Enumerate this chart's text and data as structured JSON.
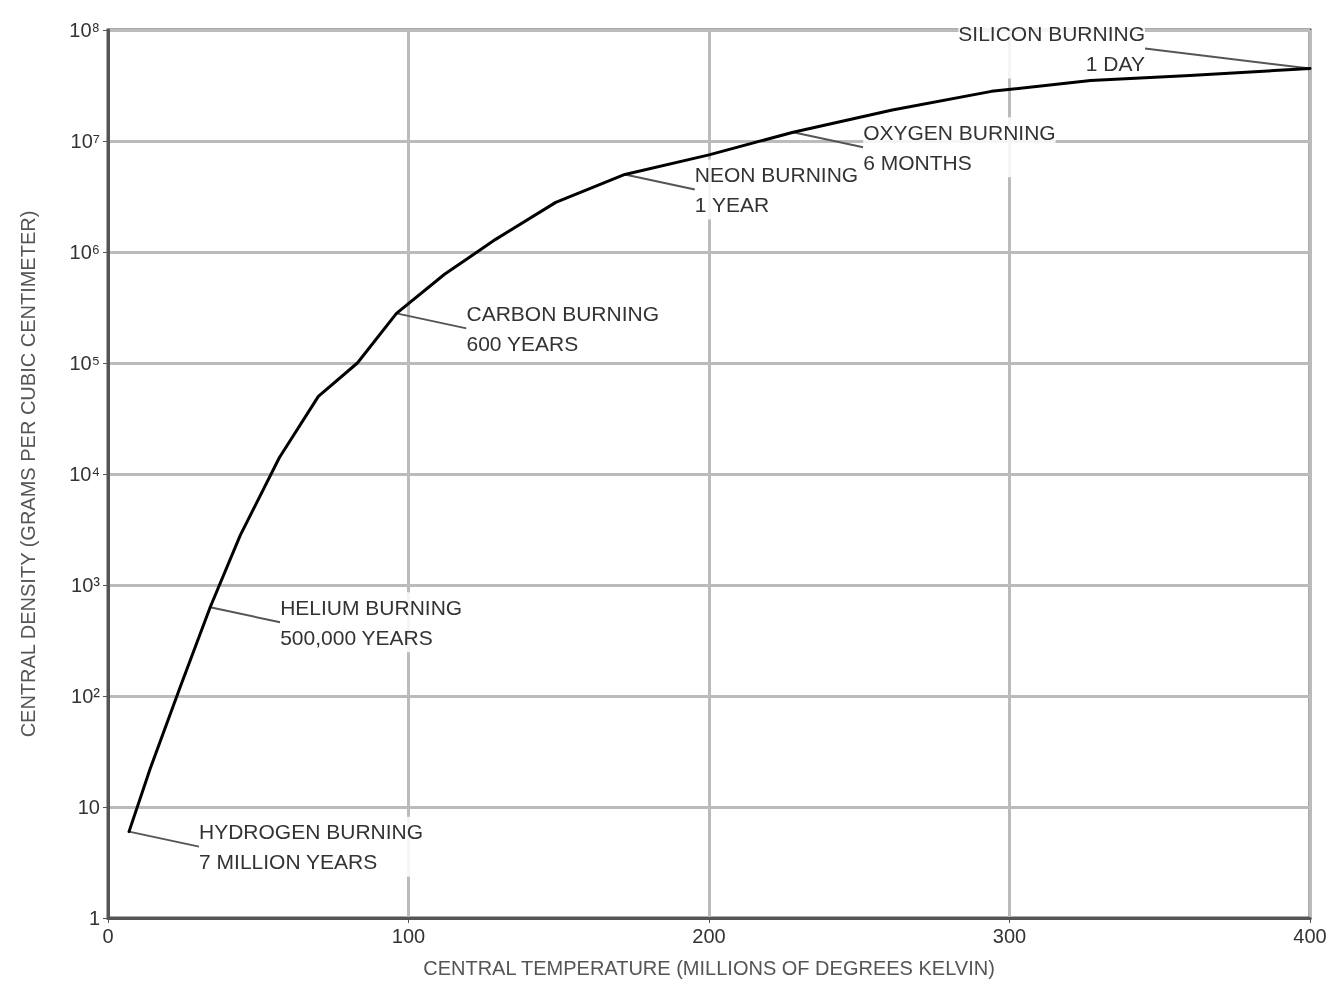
{
  "chart_data": {
    "type": "line",
    "xlabel": "CENTRAL TEMPERATURE (MILLIONS OF DEGREES KELVIN)",
    "ylabel": "CENTRAL DENSITY (GRAMS PER CUBIC CENTIMETER)",
    "x": [
      7,
      14,
      24,
      34,
      44,
      57,
      70,
      83,
      96,
      112,
      129,
      149,
      172,
      200,
      228,
      261,
      294,
      327,
      360,
      400
    ],
    "series": [
      {
        "color": "#000000",
        "values": [
          6,
          22,
          120,
          630,
          2800,
          14000,
          50000,
          100000,
          280000,
          630000,
          1300000,
          2800000,
          5000000,
          7500000,
          12000000,
          19000000,
          28000000,
          35000000,
          39000000,
          45000000
        ]
      }
    ],
    "log": "y",
    "grid": true,
    "marker": "none",
    "line_style": "solid",
    "xlim": [
      0,
      400
    ],
    "xticks": [
      0,
      100,
      200,
      300,
      400
    ],
    "ylim": [
      1,
      100000000
    ],
    "yticks": [
      1,
      10,
      {
        "value": 100,
        "label": "10²"
      },
      {
        "value": 1000,
        "label": "10³"
      },
      {
        "value": 10000,
        "label": "10⁴"
      },
      {
        "value": 100000,
        "label": "10⁵"
      },
      {
        "value": 1000000,
        "label": "10⁶"
      },
      {
        "value": 10000000,
        "label": "10⁷"
      },
      {
        "value": 100000000,
        "label": "10⁸"
      }
    ],
    "annotations": [
      {
        "text": "HYDROGEN BURNING\n7 MILLION YEARS",
        "x": 7,
        "y": 6
      },
      {
        "text": "HELIUM BURNING\n500,000 YEARS",
        "x": 34,
        "y": 630
      },
      {
        "text": "CARBON BURNING\n600 YEARS",
        "x": 96,
        "y": 280000
      },
      {
        "text": "NEON BURNING\n1 YEAR",
        "x": 172,
        "y": 5000000
      },
      {
        "text": "OXYGEN BURNING\n6 MONTHS",
        "x": 228,
        "y": 12000000
      },
      {
        "text": "SILICON BURNING\n1 DAY",
        "x": 400,
        "y": 45000000
      }
    ]
  }
}
